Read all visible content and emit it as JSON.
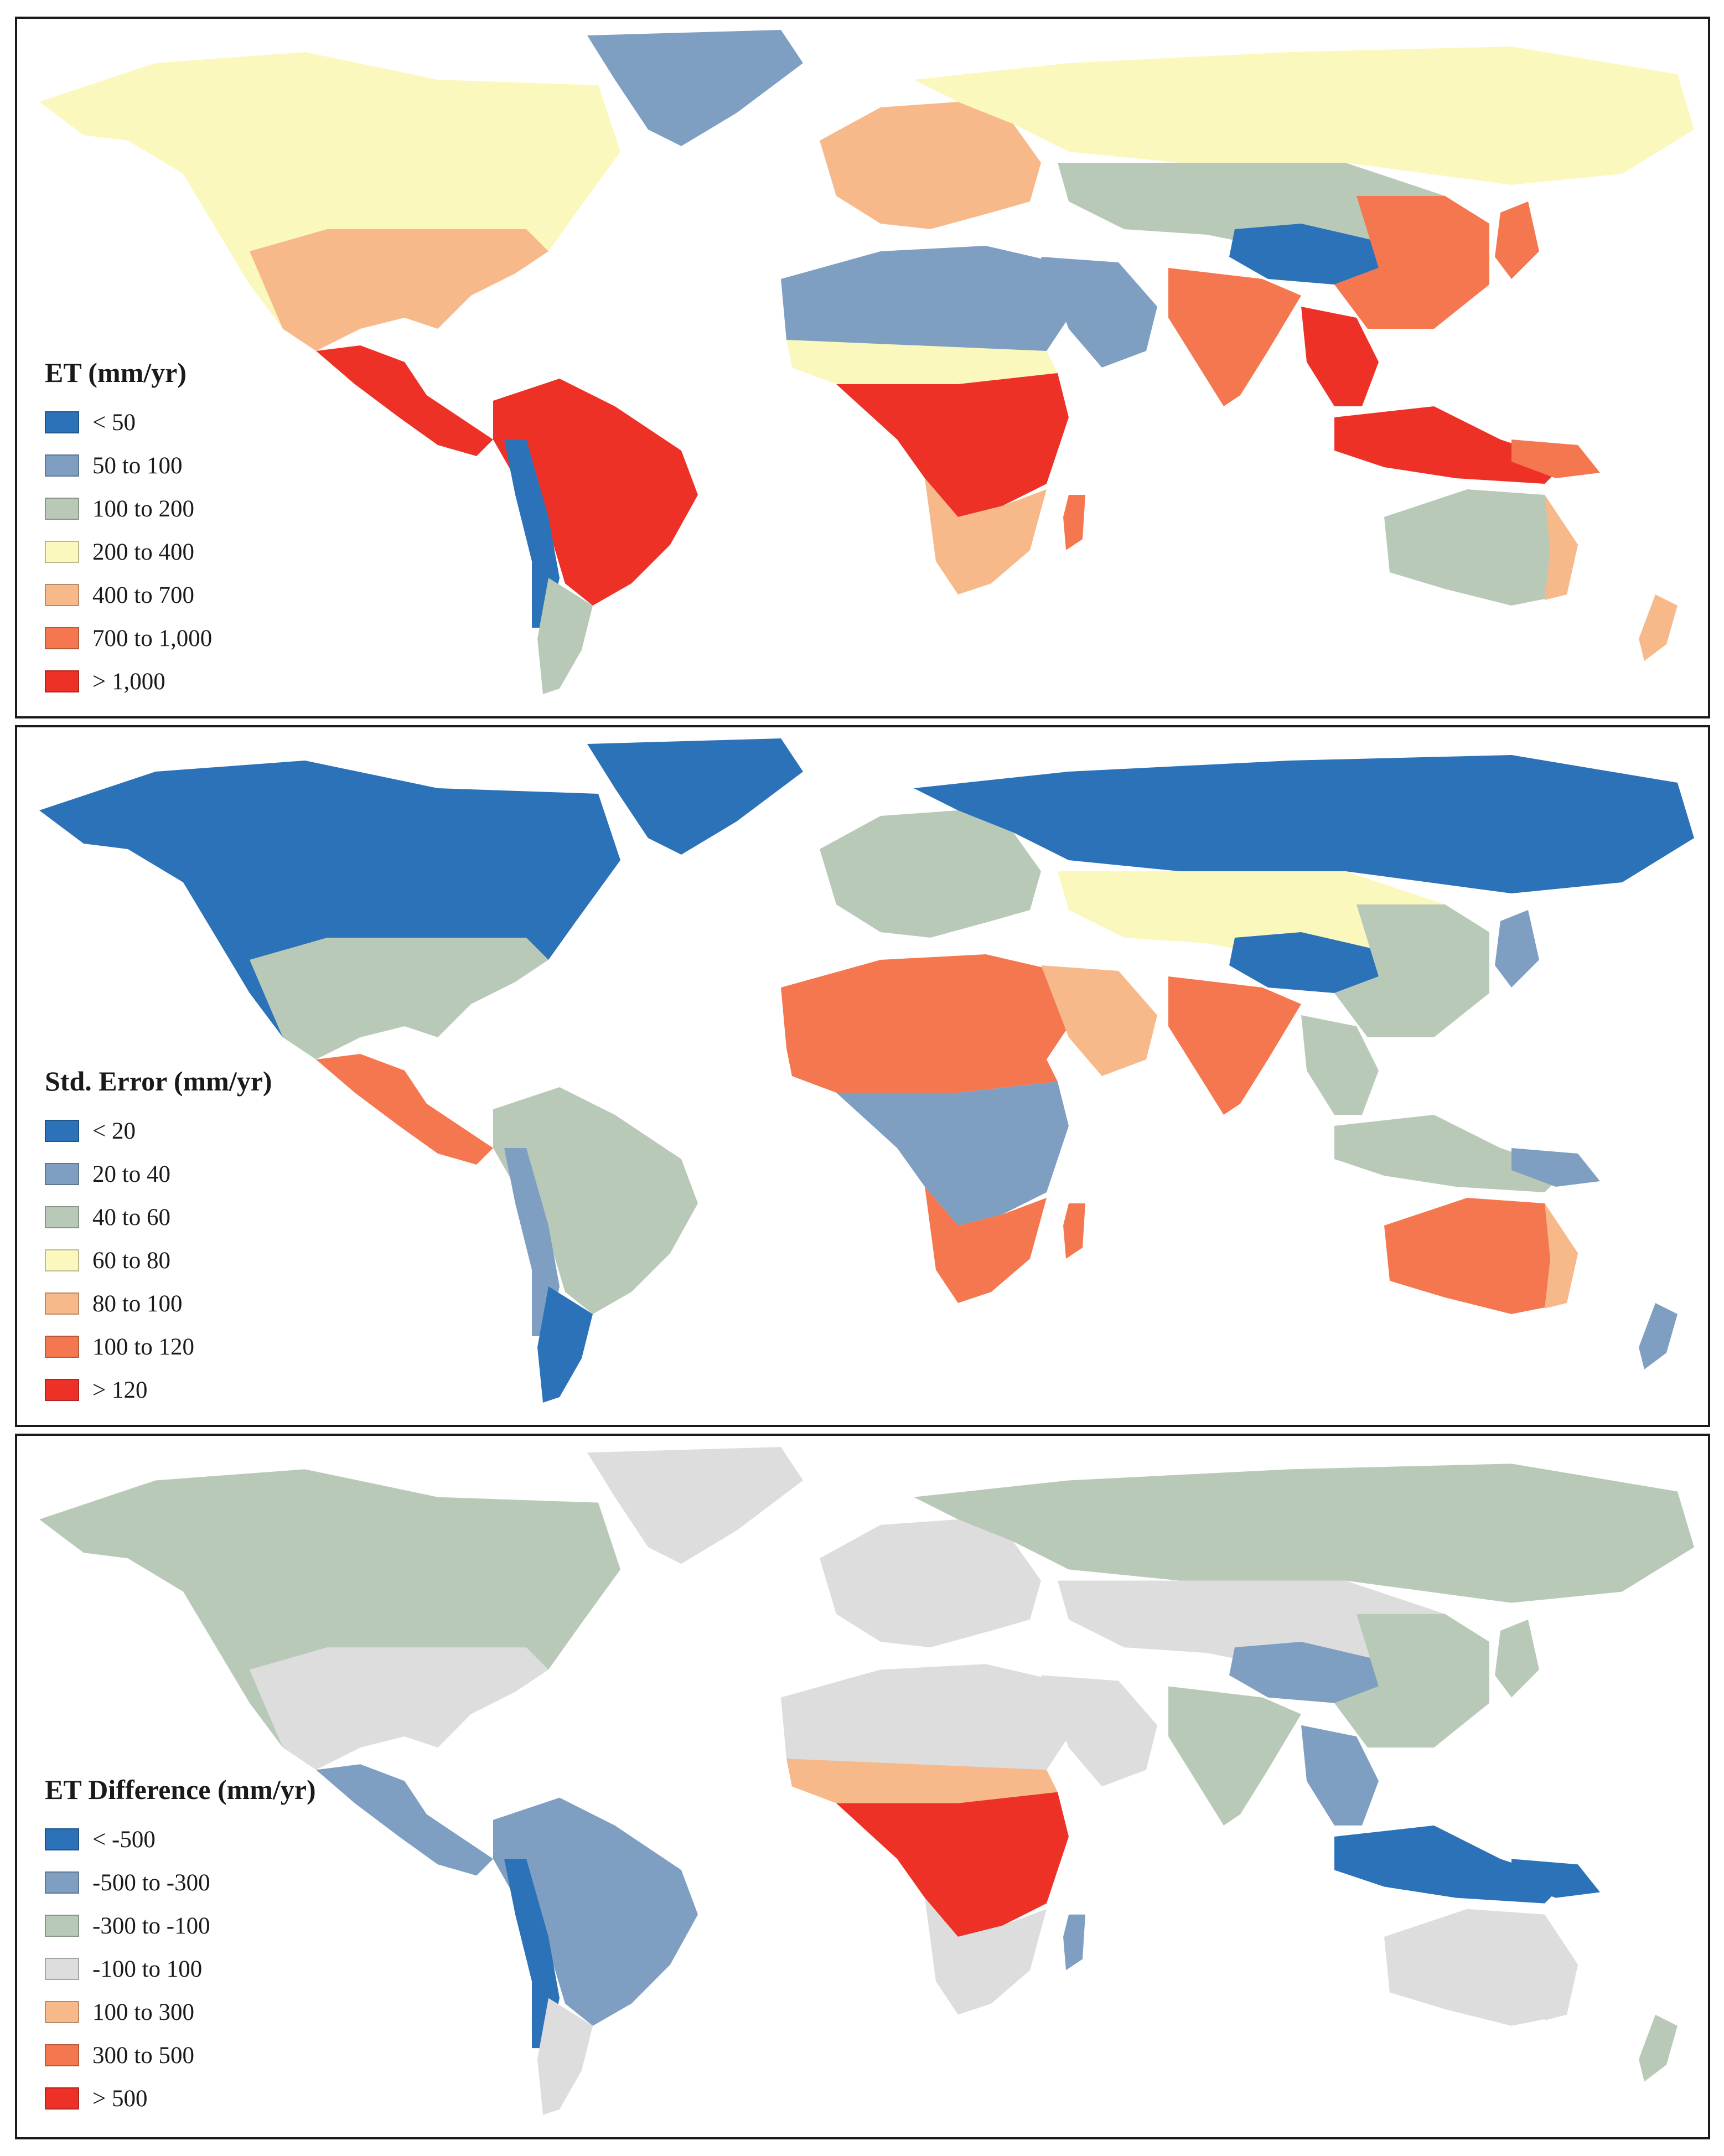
{
  "panels": [
    {
      "id": "et",
      "title": "ET (mm/yr)",
      "legend": [
        {
          "label": "< 50",
          "color": "#2b72b8"
        },
        {
          "label": "50 to 100",
          "color": "#7f9fc2"
        },
        {
          "label": "100 to 200",
          "color": "#b9c9b8"
        },
        {
          "label": "200 to 400",
          "color": "#fbf8bd"
        },
        {
          "label": "400 to 700",
          "color": "#f7b98a"
        },
        {
          "label": "700 to 1,000",
          "color": "#f5774f"
        },
        {
          "label": "> 1,000",
          "color": "#ee3127"
        }
      ]
    },
    {
      "id": "se",
      "title": "Std. Error (mm/yr)",
      "legend": [
        {
          "label": "< 20",
          "color": "#2b72b8"
        },
        {
          "label": "20 to 40",
          "color": "#7f9fc2"
        },
        {
          "label": "40 to 60",
          "color": "#b9c9b8"
        },
        {
          "label": "60 to 80",
          "color": "#fbf8bd"
        },
        {
          "label": "80 to 100",
          "color": "#f7b98a"
        },
        {
          "label": "100 to 120",
          "color": "#f5774f"
        },
        {
          "label": "> 120",
          "color": "#ee3127"
        }
      ]
    },
    {
      "id": "diff",
      "title": "ET Difference (mm/yr)",
      "legend": [
        {
          "label": "< -500",
          "color": "#2b72b8"
        },
        {
          "label": "-500 to -300",
          "color": "#7f9fc2"
        },
        {
          "label": "-300 to -100",
          "color": "#b9c9b8"
        },
        {
          "label": "-100 to 100",
          "color": "#dddddd"
        },
        {
          "label": "100 to 300",
          "color": "#f7b98a"
        },
        {
          "label": "300 to 500",
          "color": "#f5774f"
        },
        {
          "label": "> 500",
          "color": "#ee3127"
        }
      ]
    }
  ],
  "regions": {
    "et": {
      "greenland": "#7f9fc2",
      "northamerica": "#fbf8bd",
      "usa": "#f7b98a",
      "centralam": "#ee3127",
      "southamerica": "#ee3127",
      "patagonia": "#b9c9b8",
      "andes": "#2b72b8",
      "europe": "#f7b98a",
      "russia": "#fbf8bd",
      "sahara": "#7f9fc2",
      "sahel": "#fbf8bd",
      "centralafrica": "#ee3127",
      "southafrica": "#f7b98a",
      "madagascar": "#f5774f",
      "arabia": "#7f9fc2",
      "centralasia": "#b9c9b8",
      "tibet": "#2b72b8",
      "india": "#f5774f",
      "china": "#f5774f",
      "seasia": "#ee3127",
      "indonesia": "#ee3127",
      "newguinea": "#f5774f",
      "australia": "#b9c9b8",
      "ausecoast": "#f7b98a",
      "newzealand": "#f7b98a",
      "japan": "#f5774f"
    },
    "se": {
      "greenland": "#2b72b8",
      "northamerica": "#2b72b8",
      "usa": "#b9c9b8",
      "centralam": "#f5774f",
      "southamerica": "#b9c9b8",
      "patagonia": "#2b72b8",
      "andes": "#7f9fc2",
      "europe": "#b9c9b8",
      "russia": "#2b72b8",
      "sahara": "#f5774f",
      "sahel": "#f5774f",
      "centralafrica": "#7f9fc2",
      "southafrica": "#f5774f",
      "madagascar": "#f5774f",
      "arabia": "#f7b98a",
      "centralasia": "#fbf8bd",
      "tibet": "#2b72b8",
      "india": "#f5774f",
      "china": "#b9c9b8",
      "seasia": "#b9c9b8",
      "indonesia": "#b9c9b8",
      "newguinea": "#7f9fc2",
      "australia": "#f5774f",
      "ausecoast": "#f7b98a",
      "newzealand": "#7f9fc2",
      "japan": "#7f9fc2"
    },
    "diff": {
      "greenland": "#dddddd",
      "northamerica": "#b9c9b8",
      "usa": "#dddddd",
      "centralam": "#7f9fc2",
      "southamerica": "#7f9fc2",
      "patagonia": "#dddddd",
      "andes": "#2b72b8",
      "europe": "#dddddd",
      "russia": "#b9c9b8",
      "sahara": "#dddddd",
      "sahel": "#f7b98a",
      "centralafrica": "#ee3127",
      "southafrica": "#dddddd",
      "madagascar": "#7f9fc2",
      "arabia": "#dddddd",
      "centralasia": "#dddddd",
      "tibet": "#7f9fc2",
      "india": "#b9c9b8",
      "china": "#b9c9b8",
      "seasia": "#7f9fc2",
      "indonesia": "#2b72b8",
      "newguinea": "#2b72b8",
      "australia": "#dddddd",
      "ausecoast": "#dddddd",
      "newzealand": "#b9c9b8",
      "japan": "#b9c9b8"
    }
  }
}
